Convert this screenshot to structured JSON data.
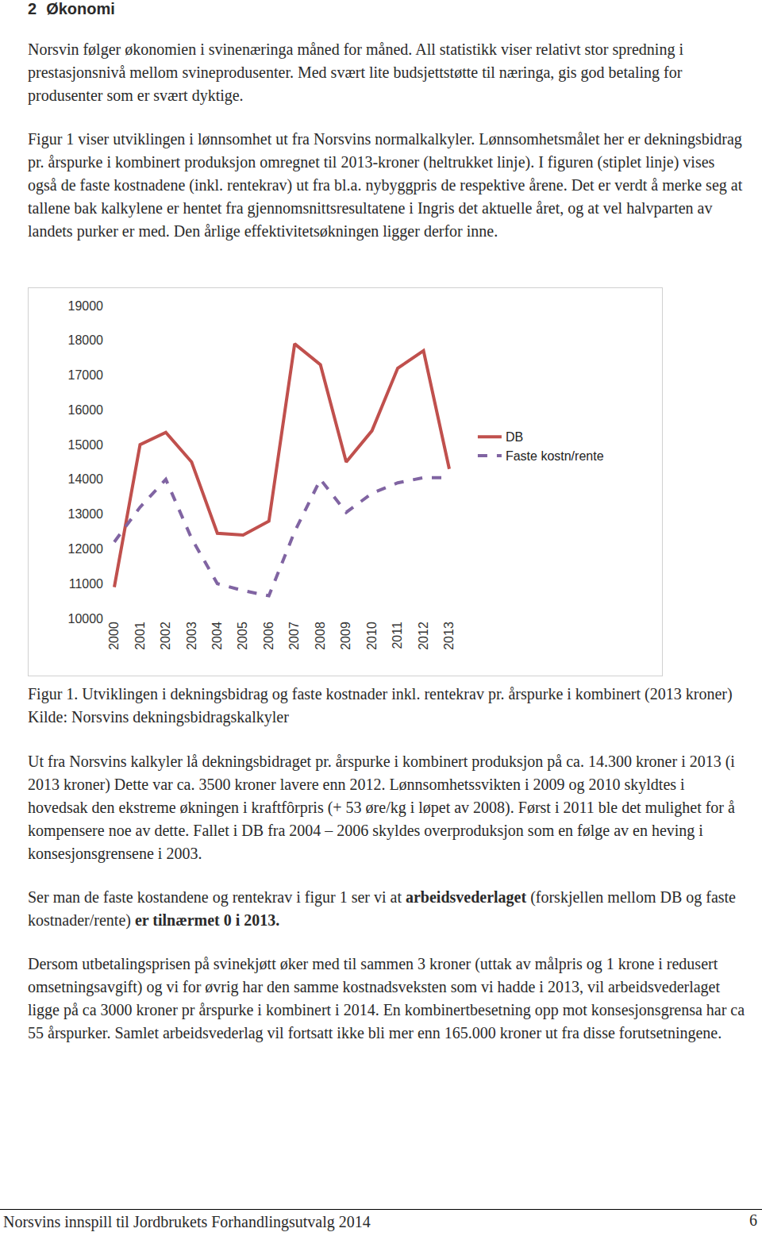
{
  "heading": {
    "number": "2",
    "title": "Økonomi"
  },
  "intro": [
    [
      {
        "text": "Norsvin følger økonomien i svinenæringa måned for måned. All statistikk viser relativt stor spredning i prestasjonsnivå mellom svineprodusenter. Med svært lite budsjettstøtte til næringa, gis god betaling for produsenter som er svært dyktige.",
        "bold": false
      }
    ],
    [
      {
        "text": "Figur 1 viser utviklingen i lønnsomhet ut fra Norsvins normalkalkyler. Lønnsomhetsmålet her er dekningsbidrag pr. årspurke i kombinert produksjon omregnet til 2013-kroner (heltrukket linje). I figuren (stiplet linje) vises også de faste kostnadene (inkl. rentekrav) ut fra bl.a. nybyggpris de respektive årene. Det er verdt å merke seg at tallene bak kalkylene er hentet fra gjennomsnittsresultatene i Ingris det aktuelle året, og at vel halvparten av landets purker er med. Den årlige effektivitetsøkningen ligger derfor inne.",
        "bold": false
      }
    ]
  ],
  "chart_data": {
    "type": "line",
    "categories": [
      "2000",
      "2001",
      "2002",
      "2003",
      "2004",
      "2005",
      "2006",
      "2007",
      "2008",
      "2009",
      "2010",
      "2011",
      "2012",
      "2013"
    ],
    "series": [
      {
        "name": "DB",
        "color": "#c0504d",
        "line_style": "solid",
        "values": [
          10900,
          15000,
          15350,
          14500,
          12450,
          12400,
          12800,
          17900,
          17300,
          14500,
          15400,
          17200,
          17700,
          14300
        ]
      },
      {
        "name": "Faste kostn/rente",
        "color": "#8064a2",
        "line_style": "dash",
        "values": [
          12200,
          13200,
          14000,
          12300,
          11000,
          10800,
          10650,
          12500,
          14000,
          13050,
          13600,
          13900,
          14050,
          14050
        ]
      }
    ],
    "ylim": [
      10000,
      19000
    ],
    "yticks": [
      10000,
      11000,
      12000,
      13000,
      14000,
      15000,
      16000,
      17000,
      18000,
      19000
    ],
    "grid": false,
    "legend": "right"
  },
  "caption": "Figur 1. Utviklingen i dekningsbidrag og faste kostnader inkl. rentekrav pr. årspurke i kombinert (2013 kroner) Kilde: Norsvins dekningsbidragskalkyler",
  "body": [
    [
      {
        "text": "Ut fra Norsvins kalkyler lå dekningsbidraget pr. årspurke i kombinert produksjon på ca. 14.300 kroner i 2013 (i 2013 kroner) Dette var ca. 3500 kroner lavere enn 2012. Lønnsomhetssvikten i 2009 og 2010 skyldtes i hovedsak den ekstreme økningen i kraftfôrpris (+ 53 øre/kg i løpet av 2008). Først i 2011 ble det mulighet for å kompensere noe av dette. Fallet i DB fra 2004 – 2006 skyldes overproduksjon som en følge av en heving i konsesjonsgrensene i 2003.",
        "bold": false
      }
    ],
    [
      {
        "text": "Ser man de faste kostandene og rentekrav i figur 1 ser vi at ",
        "bold": false
      },
      {
        "text": "arbeidsvederlaget",
        "bold": true
      },
      {
        "text": " (forskjellen mellom DB og faste kostnader/rente) ",
        "bold": false
      },
      {
        "text": "er tilnærmet 0 i 2013.",
        "bold": true
      }
    ],
    [
      {
        "text": "Dersom utbetalingsprisen på svinekjøtt øker med til sammen 3 kroner (uttak av målpris og 1 krone i redusert omsetningsavgift) og vi for øvrig har den samme kostnadsveksten som vi hadde i 2013, vil arbeidsvederlaget ligge på ca 3000 kroner pr årspurke i kombinert i 2014. En kombinertbesetning opp mot konsesjonsgrensa har ca 55 årspurker. Samlet arbeidsvederlag vil fortsatt ikke bli mer enn 165.000 kroner ut fra disse forutsetningene.",
        "bold": false
      }
    ]
  ],
  "footer": {
    "text": "Norsvins innspill til Jordbrukets Forhandlingsutvalg 2014",
    "page": "6"
  }
}
